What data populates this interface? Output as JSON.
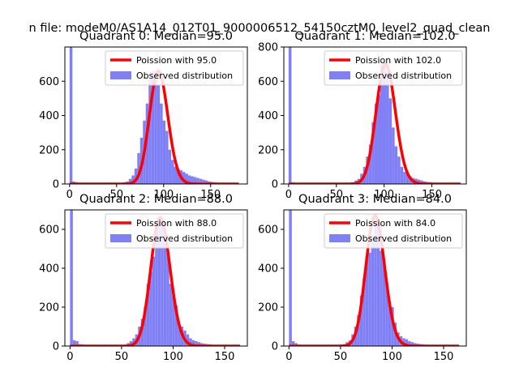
{
  "figure": {
    "suptitle": "n file: modeM0/AS1A14_012T01_9000006512_54150cztM0_level2_quad_clean"
  },
  "colors": {
    "bars": "#8080f6",
    "curve": "#ff0000",
    "axis": "#000000"
  },
  "chart_data": [
    {
      "type": "bar",
      "title": "Quadrant 0: Median=95.0",
      "xlim": [
        -5,
        189
      ],
      "ylim": [
        0,
        800
      ],
      "xticks": [
        0,
        50,
        100,
        150
      ],
      "yticks": [
        0,
        200,
        400,
        600
      ],
      "legend": [
        "Poission with 95.0",
        "Observed distribution"
      ],
      "legend_loc": "upper right",
      "poisson_lambda": 95.0,
      "curve_xrange": [
        0,
        180
      ],
      "bin_width": 3,
      "bin_starts": [
        0,
        3,
        6,
        9,
        12,
        15,
        18,
        21,
        24,
        27,
        30,
        33,
        36,
        39,
        42,
        45,
        48,
        51,
        54,
        57,
        60,
        63,
        66,
        69,
        72,
        75,
        78,
        81,
        84,
        87,
        90,
        93,
        96,
        99,
        102,
        105,
        108,
        111,
        114,
        117,
        120,
        123,
        126,
        129,
        132,
        135,
        138,
        141,
        144,
        147,
        150,
        153,
        156,
        159,
        162,
        165,
        168,
        171,
        174,
        177
      ],
      "values": [
        800,
        15,
        10,
        6,
        4,
        3,
        3,
        2,
        2,
        2,
        2,
        2,
        2,
        2,
        2,
        3,
        3,
        4,
        5,
        10,
        15,
        30,
        50,
        90,
        180,
        270,
        370,
        470,
        620,
        660,
        660,
        580,
        470,
        370,
        310,
        200,
        140,
        100,
        90,
        80,
        70,
        60,
        50,
        45,
        40,
        35,
        30,
        25,
        20,
        15,
        12,
        10,
        8,
        6,
        5,
        4,
        3,
        2,
        2,
        1
      ]
    },
    {
      "type": "bar",
      "title": "Quadrant 1: Median=102.0",
      "xlim": [
        -5,
        186
      ],
      "ylim": [
        0,
        800
      ],
      "xticks": [
        0,
        50,
        100,
        150
      ],
      "yticks": [
        0,
        200,
        400,
        600,
        800
      ],
      "legend": [
        "Poission with 102.0",
        "Observed distribution"
      ],
      "legend_loc": "upper right",
      "poisson_lambda": 102.0,
      "curve_xrange": [
        0,
        180
      ],
      "bin_width": 3,
      "bin_starts": [
        0,
        3,
        6,
        9,
        12,
        15,
        18,
        21,
        24,
        27,
        30,
        33,
        36,
        39,
        42,
        45,
        48,
        51,
        54,
        57,
        60,
        63,
        66,
        69,
        72,
        75,
        78,
        81,
        84,
        87,
        90,
        93,
        96,
        99,
        102,
        105,
        108,
        111,
        114,
        117,
        120,
        123,
        126,
        129,
        132,
        135,
        138,
        141,
        144,
        147,
        150,
        153,
        156,
        159,
        162,
        165,
        168,
        171,
        174,
        177
      ],
      "values": [
        800,
        10,
        6,
        4,
        3,
        2,
        2,
        2,
        2,
        2,
        2,
        2,
        2,
        2,
        2,
        2,
        2,
        3,
        3,
        4,
        5,
        7,
        10,
        20,
        30,
        60,
        100,
        160,
        230,
        360,
        470,
        520,
        700,
        690,
        650,
        500,
        330,
        220,
        160,
        100,
        70,
        60,
        45,
        35,
        30,
        25,
        20,
        15,
        12,
        10,
        8,
        6,
        5,
        4,
        3,
        2,
        2,
        2,
        1,
        1
      ]
    },
    {
      "type": "bar",
      "title": "Quadrant 2: Median=88.0",
      "xlim": [
        -5,
        172
      ],
      "ylim": [
        0,
        700
      ],
      "xticks": [
        0,
        50,
        100,
        150
      ],
      "yticks": [
        0,
        200,
        400,
        600
      ],
      "legend": [
        "Poission with 88.0",
        "Observed distribution"
      ],
      "legend_loc": "upper right",
      "poisson_lambda": 88.0,
      "curve_xrange": [
        0,
        165
      ],
      "bin_width": 2.75,
      "bin_starts": [
        0,
        2.75,
        5.5,
        8.25,
        11,
        13.75,
        16.5,
        19.25,
        22,
        24.75,
        27.5,
        30.25,
        33,
        35.75,
        38.5,
        41.25,
        44,
        46.75,
        49.5,
        52.25,
        55,
        57.75,
        60.5,
        63.25,
        66,
        68.75,
        71.5,
        74.25,
        77,
        79.75,
        82.5,
        85.25,
        88,
        90.75,
        93.5,
        96.25,
        99,
        101.75,
        104.5,
        107.25,
        110,
        112.75,
        115.5,
        118.25,
        121,
        123.75,
        126.5,
        129.25,
        132,
        134.75,
        137.5,
        140.25,
        143,
        145.75,
        148.5,
        151.25,
        154,
        156.75,
        159.5,
        162.25
      ],
      "values": [
        700,
        30,
        25,
        10,
        8,
        6,
        5,
        4,
        3,
        3,
        3,
        2,
        2,
        2,
        2,
        3,
        3,
        3,
        4,
        6,
        15,
        25,
        40,
        60,
        100,
        140,
        200,
        320,
        380,
        460,
        600,
        660,
        650,
        550,
        480,
        320,
        260,
        210,
        110,
        100,
        80,
        60,
        40,
        30,
        25,
        20,
        15,
        12,
        10,
        8,
        6,
        5,
        4,
        3,
        2,
        2,
        2,
        1,
        1,
        1
      ]
    },
    {
      "type": "bar",
      "title": "Quadrant 3: Median=84.0",
      "xlim": [
        -5,
        172
      ],
      "ylim": [
        0,
        700
      ],
      "xticks": [
        0,
        50,
        100,
        150
      ],
      "yticks": [
        0,
        200,
        400,
        600
      ],
      "legend": [
        "Poission with 84.0",
        "Observed distribution"
      ],
      "legend_loc": "upper right",
      "poisson_lambda": 84.0,
      "curve_xrange": [
        0,
        165
      ],
      "bin_width": 2.75,
      "bin_starts": [
        0,
        2.75,
        5.5,
        8.25,
        11,
        13.75,
        16.5,
        19.25,
        22,
        24.75,
        27.5,
        30.25,
        33,
        35.75,
        38.5,
        41.25,
        44,
        46.75,
        49.5,
        52.25,
        55,
        57.75,
        60.5,
        63.25,
        66,
        68.75,
        71.5,
        74.25,
        77,
        79.75,
        82.5,
        85.25,
        88,
        90.75,
        93.5,
        96.25,
        99,
        101.75,
        104.5,
        107.25,
        110,
        112.75,
        115.5,
        118.25,
        121,
        123.75,
        126.5,
        129.25,
        132,
        134.75,
        137.5,
        140.25,
        143,
        145.75,
        148.5,
        151.25,
        154,
        156.75,
        159.5,
        162.25
      ],
      "values": [
        700,
        25,
        15,
        8,
        5,
        4,
        3,
        3,
        3,
        2,
        2,
        2,
        2,
        2,
        2,
        3,
        3,
        3,
        5,
        10,
        20,
        30,
        60,
        100,
        160,
        260,
        350,
        460,
        480,
        560,
        670,
        620,
        490,
        440,
        330,
        230,
        200,
        120,
        70,
        50,
        40,
        35,
        25,
        20,
        15,
        12,
        10,
        8,
        6,
        5,
        4,
        3,
        3,
        2,
        2,
        2,
        1,
        1,
        1,
        1
      ]
    }
  ]
}
